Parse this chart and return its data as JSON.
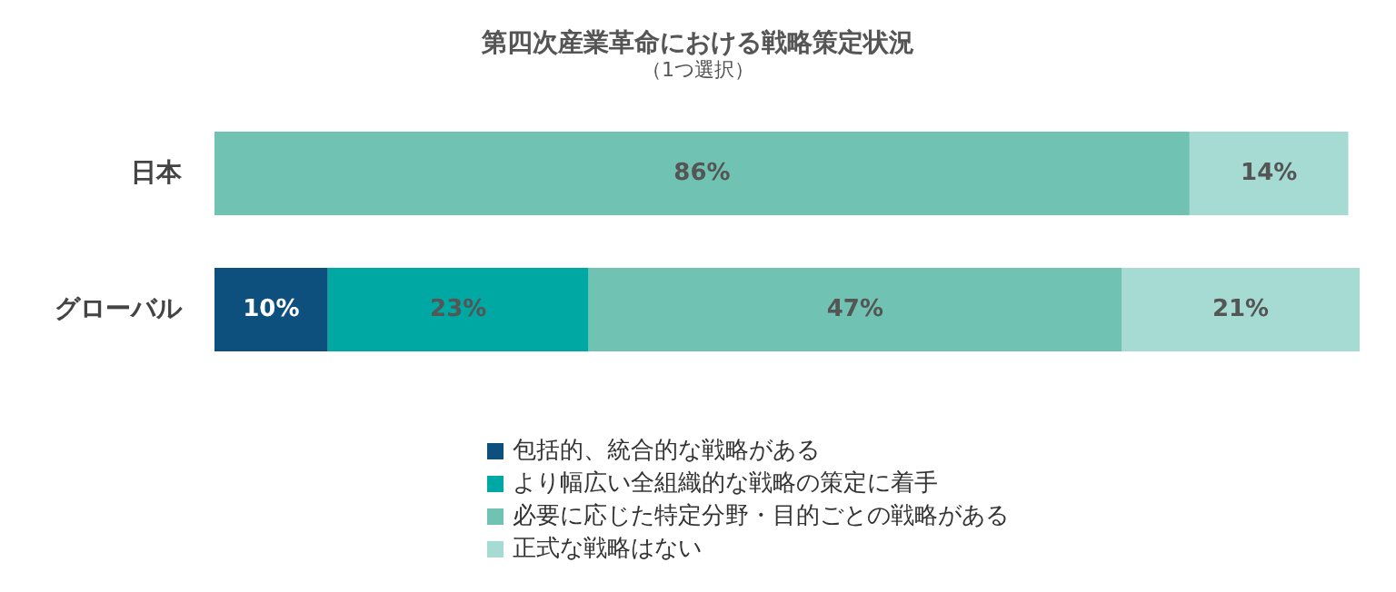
{
  "chart_data": {
    "type": "bar",
    "orientation": "horizontal",
    "stacked": true,
    "title": "第四次産業革命における戦略策定状況",
    "subtitle": "（1つ選択）",
    "categories": [
      "日本",
      "グローバル"
    ],
    "tick_labels": "y",
    "legend": "bottom",
    "grid": false,
    "series": [
      {
        "name": "包括的、統合的な戦略がある",
        "color": "#0d4f7d",
        "values": [
          null,
          10
        ],
        "value_labels": [
          null,
          "10%"
        ]
      },
      {
        "name": "より幅広い全組織的な戦略の策定に着手",
        "color": "#00a8a3",
        "values": [
          null,
          23
        ],
        "value_labels": [
          null,
          "23%"
        ]
      },
      {
        "name": "必要に応じた特定分野・目的ごとの戦略がある",
        "color": "#70c3b2",
        "values": [
          86,
          47
        ],
        "value_labels": [
          "86%",
          "47%"
        ]
      },
      {
        "name": "正式な戦略はない",
        "color": "#a5dbd3",
        "values": [
          14,
          21
        ],
        "value_labels": [
          "14%",
          "21%"
        ]
      }
    ]
  }
}
